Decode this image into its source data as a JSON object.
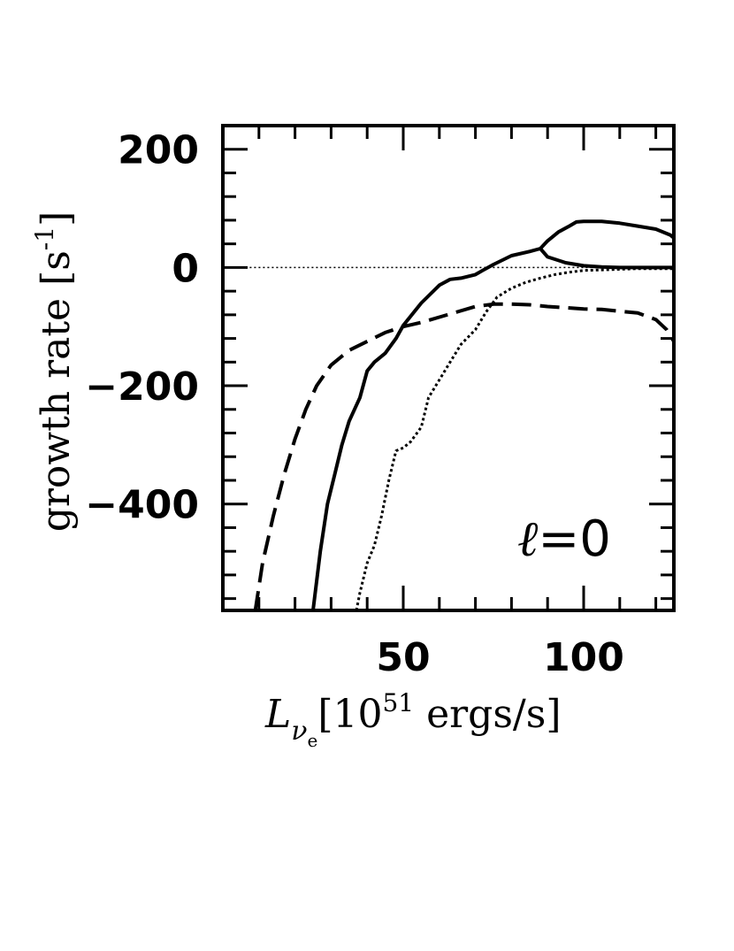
{
  "chart_data": {
    "type": "line",
    "title": "",
    "xlabel_parts": {
      "symbol": "L",
      "subscript": "ν",
      "subsubscript": "e",
      "rest_open": "[10",
      "exp": "51",
      "rest_close": " ergs/s]"
    },
    "ylabel_parts": {
      "text": "growth rate [s",
      "exp": "-1",
      "close": "]"
    },
    "annotation": {
      "script": "ℓ",
      "rest": "=0"
    },
    "xlim": [
      0,
      125
    ],
    "ylim": [
      -580,
      240
    ],
    "xticks": [
      {
        "value": 50,
        "label": "50"
      },
      {
        "value": 100,
        "label": "100"
      }
    ],
    "yticks": [
      {
        "value": 200,
        "label": "200"
      },
      {
        "value": 0,
        "label": "0"
      },
      {
        "value": -200,
        "label": "−200"
      },
      {
        "value": -400,
        "label": "−400"
      }
    ],
    "zero_line": true,
    "series": [
      {
        "style": "dashed",
        "x": [
          9,
          11,
          14,
          17,
          20,
          23,
          26,
          30,
          35,
          40,
          45,
          50,
          55,
          60,
          65,
          70,
          75,
          80,
          85,
          90,
          95,
          100,
          105,
          110,
          115,
          120,
          123,
          125
        ],
        "y": [
          -580,
          -500,
          -420,
          -350,
          -290,
          -240,
          -200,
          -165,
          -140,
          -125,
          -110,
          -100,
          -93,
          -84,
          -75,
          -66,
          -62,
          -62,
          -63,
          -66,
          -68,
          -70,
          -71,
          -74,
          -77,
          -88,
          -105,
          -125
        ]
      },
      {
        "style": "solid",
        "x": [
          25,
          27,
          29,
          31,
          33,
          35,
          38,
          40,
          42,
          45,
          48,
          50,
          55,
          60,
          63,
          66,
          70,
          72,
          75,
          80,
          85,
          88,
          90,
          95,
          100,
          105,
          110,
          115,
          120,
          125
        ],
        "y": [
          -580,
          -480,
          -400,
          -350,
          -300,
          -260,
          -220,
          -175,
          -160,
          -145,
          -120,
          -98,
          -60,
          -30,
          -20,
          -18,
          -12,
          -5,
          5,
          20,
          27,
          32,
          18,
          8,
          3,
          1,
          0,
          0,
          0,
          0
        ]
      },
      {
        "style": "solid",
        "x": [
          88,
          90,
          93,
          96,
          98,
          100,
          105,
          110,
          115,
          120,
          124,
          125
        ],
        "y": [
          32,
          45,
          60,
          70,
          77,
          78,
          78,
          75,
          70,
          65,
          55,
          50
        ]
      },
      {
        "style": "dotted",
        "x": [
          37,
          38,
          40,
          42,
          44,
          46,
          48,
          50,
          52,
          55,
          57,
          60,
          63,
          66,
          70,
          73,
          76,
          80,
          84,
          88,
          92,
          96,
          100,
          105,
          110,
          115,
          120,
          125
        ],
        "y": [
          -580,
          -550,
          -500,
          -470,
          -420,
          -360,
          -310,
          -305,
          -295,
          -270,
          -220,
          -190,
          -160,
          -130,
          -105,
          -75,
          -50,
          -35,
          -25,
          -18,
          -12,
          -8,
          -5,
          -4,
          -3,
          -2,
          -2,
          -2
        ]
      }
    ]
  }
}
